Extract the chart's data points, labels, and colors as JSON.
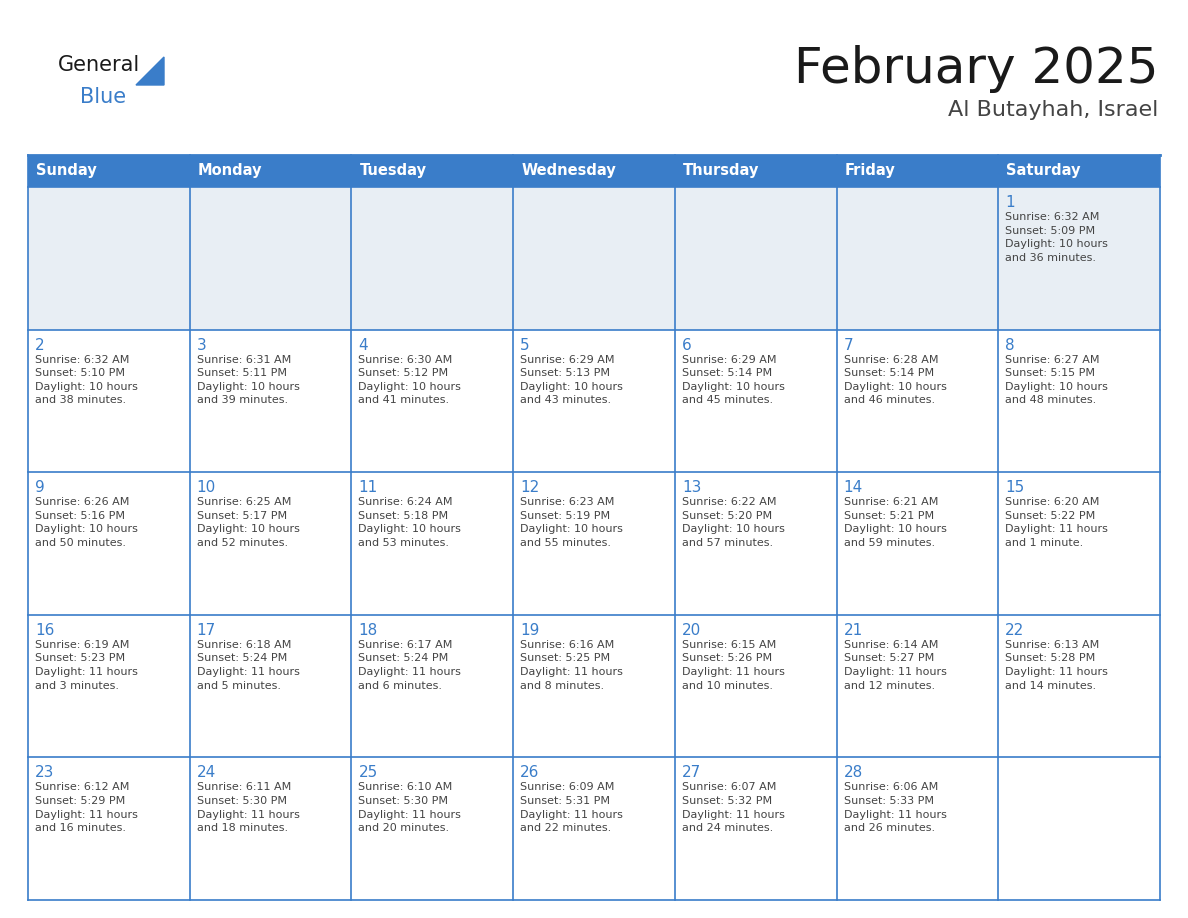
{
  "title": "February 2025",
  "subtitle": "Al Butayhah, Israel",
  "days_of_week": [
    "Sunday",
    "Monday",
    "Tuesday",
    "Wednesday",
    "Thursday",
    "Friday",
    "Saturday"
  ],
  "header_bg": "#3A7DC9",
  "header_text": "#FFFFFF",
  "row1_bg": "#E8EEF4",
  "cell_bg": "#FFFFFF",
  "day_number_color": "#3A7DC9",
  "text_color": "#444444",
  "border_color": "#3A7DC9",
  "title_color": "#1A1A1A",
  "subtitle_color": "#444444",
  "logo_general_color": "#1A1A1A",
  "logo_blue_color": "#3A7DC9",
  "fig_width": 11.88,
  "fig_height": 9.18,
  "dpi": 100,
  "weeks": [
    [
      {
        "day": null,
        "info": null
      },
      {
        "day": null,
        "info": null
      },
      {
        "day": null,
        "info": null
      },
      {
        "day": null,
        "info": null
      },
      {
        "day": null,
        "info": null
      },
      {
        "day": null,
        "info": null
      },
      {
        "day": 1,
        "info": "Sunrise: 6:32 AM\nSunset: 5:09 PM\nDaylight: 10 hours\nand 36 minutes."
      }
    ],
    [
      {
        "day": 2,
        "info": "Sunrise: 6:32 AM\nSunset: 5:10 PM\nDaylight: 10 hours\nand 38 minutes."
      },
      {
        "day": 3,
        "info": "Sunrise: 6:31 AM\nSunset: 5:11 PM\nDaylight: 10 hours\nand 39 minutes."
      },
      {
        "day": 4,
        "info": "Sunrise: 6:30 AM\nSunset: 5:12 PM\nDaylight: 10 hours\nand 41 minutes."
      },
      {
        "day": 5,
        "info": "Sunrise: 6:29 AM\nSunset: 5:13 PM\nDaylight: 10 hours\nand 43 minutes."
      },
      {
        "day": 6,
        "info": "Sunrise: 6:29 AM\nSunset: 5:14 PM\nDaylight: 10 hours\nand 45 minutes."
      },
      {
        "day": 7,
        "info": "Sunrise: 6:28 AM\nSunset: 5:14 PM\nDaylight: 10 hours\nand 46 minutes."
      },
      {
        "day": 8,
        "info": "Sunrise: 6:27 AM\nSunset: 5:15 PM\nDaylight: 10 hours\nand 48 minutes."
      }
    ],
    [
      {
        "day": 9,
        "info": "Sunrise: 6:26 AM\nSunset: 5:16 PM\nDaylight: 10 hours\nand 50 minutes."
      },
      {
        "day": 10,
        "info": "Sunrise: 6:25 AM\nSunset: 5:17 PM\nDaylight: 10 hours\nand 52 minutes."
      },
      {
        "day": 11,
        "info": "Sunrise: 6:24 AM\nSunset: 5:18 PM\nDaylight: 10 hours\nand 53 minutes."
      },
      {
        "day": 12,
        "info": "Sunrise: 6:23 AM\nSunset: 5:19 PM\nDaylight: 10 hours\nand 55 minutes."
      },
      {
        "day": 13,
        "info": "Sunrise: 6:22 AM\nSunset: 5:20 PM\nDaylight: 10 hours\nand 57 minutes."
      },
      {
        "day": 14,
        "info": "Sunrise: 6:21 AM\nSunset: 5:21 PM\nDaylight: 10 hours\nand 59 minutes."
      },
      {
        "day": 15,
        "info": "Sunrise: 6:20 AM\nSunset: 5:22 PM\nDaylight: 11 hours\nand 1 minute."
      }
    ],
    [
      {
        "day": 16,
        "info": "Sunrise: 6:19 AM\nSunset: 5:23 PM\nDaylight: 11 hours\nand 3 minutes."
      },
      {
        "day": 17,
        "info": "Sunrise: 6:18 AM\nSunset: 5:24 PM\nDaylight: 11 hours\nand 5 minutes."
      },
      {
        "day": 18,
        "info": "Sunrise: 6:17 AM\nSunset: 5:24 PM\nDaylight: 11 hours\nand 6 minutes."
      },
      {
        "day": 19,
        "info": "Sunrise: 6:16 AM\nSunset: 5:25 PM\nDaylight: 11 hours\nand 8 minutes."
      },
      {
        "day": 20,
        "info": "Sunrise: 6:15 AM\nSunset: 5:26 PM\nDaylight: 11 hours\nand 10 minutes."
      },
      {
        "day": 21,
        "info": "Sunrise: 6:14 AM\nSunset: 5:27 PM\nDaylight: 11 hours\nand 12 minutes."
      },
      {
        "day": 22,
        "info": "Sunrise: 6:13 AM\nSunset: 5:28 PM\nDaylight: 11 hours\nand 14 minutes."
      }
    ],
    [
      {
        "day": 23,
        "info": "Sunrise: 6:12 AM\nSunset: 5:29 PM\nDaylight: 11 hours\nand 16 minutes."
      },
      {
        "day": 24,
        "info": "Sunrise: 6:11 AM\nSunset: 5:30 PM\nDaylight: 11 hours\nand 18 minutes."
      },
      {
        "day": 25,
        "info": "Sunrise: 6:10 AM\nSunset: 5:30 PM\nDaylight: 11 hours\nand 20 minutes."
      },
      {
        "day": 26,
        "info": "Sunrise: 6:09 AM\nSunset: 5:31 PM\nDaylight: 11 hours\nand 22 minutes."
      },
      {
        "day": 27,
        "info": "Sunrise: 6:07 AM\nSunset: 5:32 PM\nDaylight: 11 hours\nand 24 minutes."
      },
      {
        "day": 28,
        "info": "Sunrise: 6:06 AM\nSunset: 5:33 PM\nDaylight: 11 hours\nand 26 minutes."
      },
      {
        "day": null,
        "info": null
      }
    ]
  ]
}
